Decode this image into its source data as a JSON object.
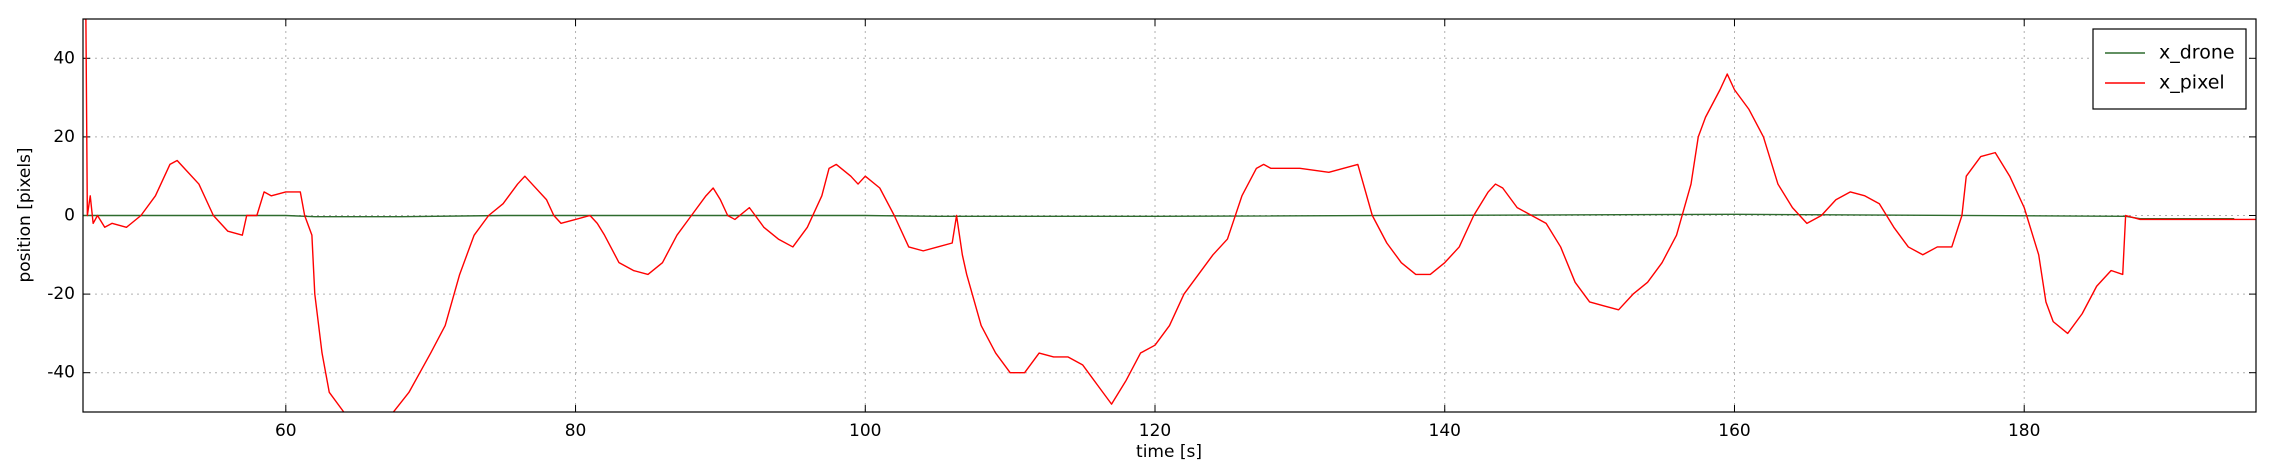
{
  "chart_data": {
    "type": "line",
    "xlabel": "time [s]",
    "ylabel": "position [pixels]",
    "xlim": [
      46,
      196
    ],
    "ylim": [
      -50,
      50
    ],
    "xticks": [
      60,
      80,
      100,
      120,
      140,
      160,
      180
    ],
    "yticks": [
      -40,
      -20,
      0,
      20,
      40
    ],
    "grid": true,
    "legend": "upper right",
    "series": [
      {
        "name": "x_drone",
        "color": "#2e6b2e",
        "x": [
          46,
          60,
          62,
          68,
          75,
          100,
          105,
          120,
          160,
          187,
          188,
          194.5
        ],
        "values": [
          0,
          0,
          -0.3,
          -0.3,
          0,
          0,
          -0.2,
          -0.2,
          0.3,
          -0.2,
          -0.8,
          -0.8
        ]
      },
      {
        "name": "x_pixel",
        "color": "#ff0000",
        "x": [
          46.1,
          46.2,
          46.3,
          46.5,
          46.7,
          47,
          47.5,
          48,
          49,
          50,
          51,
          52,
          52.5,
          53,
          54,
          55,
          56,
          57,
          57.3,
          58,
          58.5,
          59,
          60,
          61,
          61.3,
          61.8,
          62,
          62.5,
          63,
          64,
          65,
          67,
          68.5,
          70,
          71,
          72,
          73,
          74,
          75,
          76,
          76.5,
          77,
          78,
          78.5,
          79,
          80,
          81,
          81.5,
          82,
          83,
          84,
          85,
          86,
          87,
          88,
          89,
          89.5,
          90,
          90.5,
          91,
          92,
          93,
          94,
          95,
          96,
          97,
          97.5,
          98,
          99,
          99.5,
          100,
          101,
          102,
          103,
          104,
          105,
          106,
          106.3,
          106.7,
          107,
          108,
          109,
          110,
          111,
          112,
          113,
          114,
          115,
          116,
          117,
          118,
          119,
          120,
          121,
          122,
          123,
          124,
          125,
          126,
          127,
          127.5,
          128,
          130,
          132,
          134,
          135,
          136,
          137,
          138,
          139,
          140,
          141,
          142,
          143,
          143.5,
          144,
          145,
          146,
          147,
          148,
          149,
          150,
          151,
          152,
          153,
          154,
          155,
          156,
          157,
          157.5,
          158,
          159,
          159.5,
          160,
          161,
          162,
          163,
          164,
          165,
          166,
          167,
          168,
          169,
          170,
          171,
          172,
          173,
          174,
          175,
          175.7,
          176,
          177,
          178,
          179,
          180,
          181,
          181.5,
          182,
          183,
          184,
          185,
          186,
          186.8,
          187,
          188,
          190,
          196
        ],
        "values": [
          50,
          50,
          0,
          5,
          -2,
          0,
          -3,
          -2,
          -3,
          0,
          5,
          13,
          14,
          12,
          8,
          0,
          -4,
          -5,
          0,
          0,
          6,
          5,
          6,
          6,
          0,
          -5,
          -20,
          -35,
          -45,
          -50,
          -52,
          -52,
          -45,
          -35,
          -28,
          -15,
          -5,
          0,
          3,
          8,
          10,
          8,
          4,
          0,
          -2,
          -1,
          0,
          -2,
          -5,
          -12,
          -14,
          -15,
          -12,
          -5,
          0,
          5,
          7,
          4,
          0,
          -1,
          2,
          -3,
          -6,
          -8,
          -3,
          5,
          12,
          13,
          10,
          8,
          10,
          7,
          0,
          -8,
          -9,
          -8,
          -7,
          0,
          -10,
          -15,
          -28,
          -35,
          -40,
          -40,
          -35,
          -36,
          -36,
          -38,
          -43,
          -48,
          -42,
          -35,
          -33,
          -28,
          -20,
          -15,
          -10,
          -6,
          5,
          12,
          13,
          12,
          12,
          11,
          13,
          0,
          -7,
          -12,
          -15,
          -15,
          -12,
          -8,
          0,
          6,
          8,
          7,
          2,
          0,
          -2,
          -8,
          -17,
          -22,
          -23,
          -24,
          -20,
          -17,
          -12,
          -5,
          8,
          20,
          25,
          32,
          36,
          32,
          27,
          20,
          8,
          2,
          -2,
          0,
          4,
          6,
          5,
          3,
          -3,
          -8,
          -10,
          -8,
          -8,
          0,
          10,
          15,
          16,
          10,
          2,
          -10,
          -22,
          -27,
          -30,
          -25,
          -18,
          -14,
          -15,
          0,
          -1,
          -1,
          -1
        ]
      }
    ]
  }
}
